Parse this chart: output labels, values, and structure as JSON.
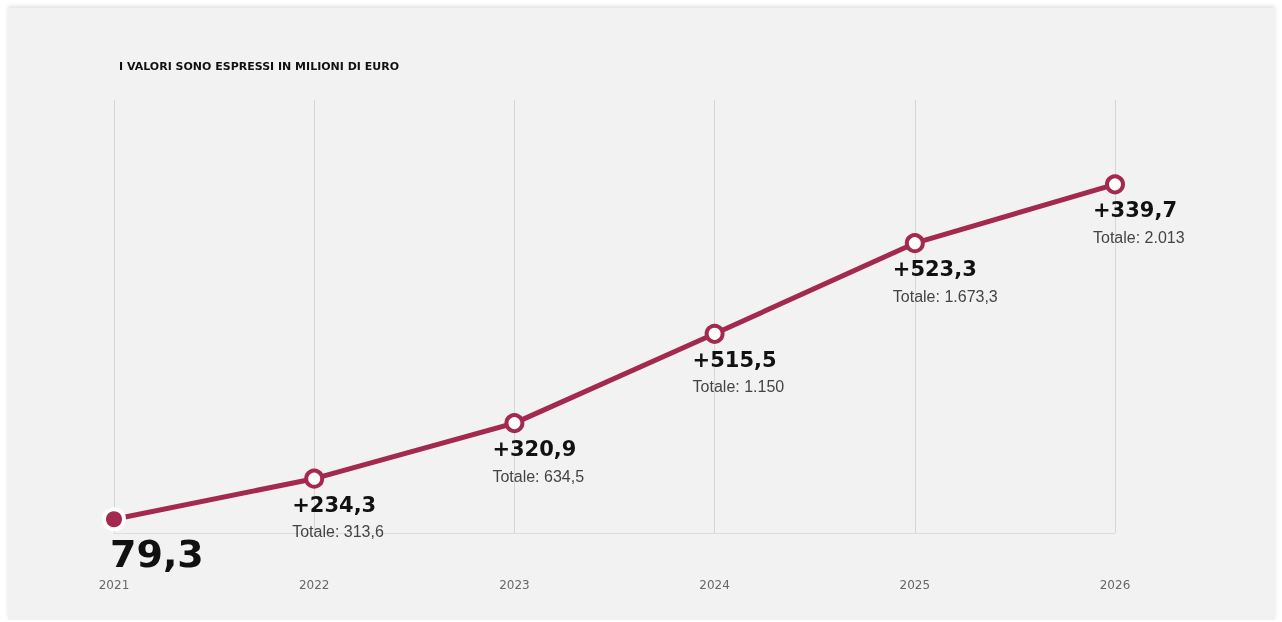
{
  "chart_data": {
    "type": "line",
    "title": "I VALORI SONO ESPRESSI IN MILIONI DI EURO",
    "categories": [
      "2021",
      "2022",
      "2023",
      "2024",
      "2025",
      "2026"
    ],
    "series": [
      {
        "color": "#a3294e",
        "values": [
          79.3,
          313.6,
          634.5,
          1150,
          1673.3,
          2013
        ],
        "value_labels": [
          "79,3",
          "+234,3\nTotale: 313,6",
          "+320,9\nTotale: 634,5",
          "+515,5\nTotale: 1.150",
          "+523,3\nTotale: 1.673,3",
          "+339,7\nTotale: 2.013"
        ]
      }
    ],
    "ylim": [
      0,
      2500
    ],
    "tick_labels": "x",
    "grid": "x",
    "marker": "circle",
    "line_style": "solid"
  }
}
